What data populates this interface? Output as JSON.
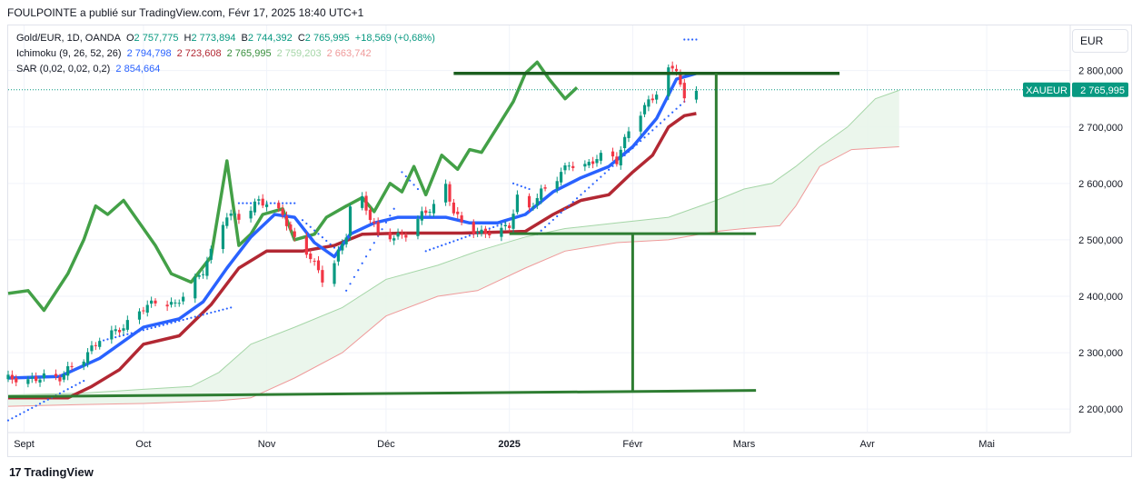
{
  "header": {
    "publisher_line": "FOULPOINTE a publié sur TradingView.com, Févr 17, 2025 18:40 UTC+1"
  },
  "legend": {
    "symbol": "Gold/EUR, 1D, OANDA",
    "ohlc": {
      "o_label": "O",
      "o": "2 757,775",
      "h_label": "H",
      "h": "2 773,894",
      "l_label": "B",
      "l": "2 744,392",
      "c_label": "C",
      "c": "2 765,995",
      "change": "+18,569 (+0,68%)"
    },
    "ichimoku": {
      "label": "Ichimoku (9, 26, 52, 26)",
      "v1": "2 794,798",
      "v2": "2 723,608",
      "v3": "2 765,995",
      "v4": "2 759,203",
      "v5": "2 663,742"
    },
    "sar": {
      "label": "SAR (0,02, 0,02, 0,2)",
      "v1": "2 854,664"
    }
  },
  "currency_button": "EUR",
  "footer": {
    "brand": "TradingView",
    "logo_glyph": "17"
  },
  "colors": {
    "up": "#089981",
    "down": "#f23645",
    "tenkan": "#2962ff",
    "kijun": "#b22833",
    "chikou": "#43a047",
    "spanA": "#a5d6a7",
    "spanB": "#ef9a9a",
    "cloud": "#e8f5e9",
    "sar": "#2962ff",
    "drawing": "#2e7d32",
    "drawing_dark": "#1b5e20"
  },
  "chart_data": {
    "type": "candlestick",
    "instrument": "XAUEUR",
    "last_price": 2765.995,
    "last_price_label": "2 765,995",
    "y_axis": {
      "ylim": [
        2160,
        2880
      ],
      "ticks": [
        2200,
        2300,
        2400,
        2500,
        2600,
        2700,
        2800
      ],
      "tick_labels": [
        "2 200,000",
        "2 300,000",
        "2 400,000",
        "2 500,000",
        "2 600,000",
        "2 700,000",
        "2 800,000"
      ]
    },
    "x_axis": {
      "range": [
        "2024-08-28",
        "2025-05-22"
      ],
      "ticks": [
        {
          "date": "2024-09-01",
          "label": "Sept",
          "bold": false
        },
        {
          "date": "2024-10-01",
          "label": "Oct",
          "bold": false
        },
        {
          "date": "2024-11-01",
          "label": "Nov",
          "bold": false
        },
        {
          "date": "2024-12-01",
          "label": "Déc",
          "bold": false
        },
        {
          "date": "2025-01-01",
          "label": "2025",
          "bold": true
        },
        {
          "date": "2025-02-01",
          "label": "Févr",
          "bold": false
        },
        {
          "date": "2025-03-01",
          "label": "Mars",
          "bold": false
        },
        {
          "date": "2025-04-01",
          "label": "Avr",
          "bold": false
        },
        {
          "date": "2025-05-01",
          "label": "Mai",
          "bold": false
        }
      ]
    },
    "price_path": [
      [
        "2024-08-28",
        2255
      ],
      [
        "2024-09-02",
        2250
      ],
      [
        "2024-09-06",
        2258
      ],
      [
        "2024-09-10",
        2255
      ],
      [
        "2024-09-12",
        2270
      ],
      [
        "2024-09-16",
        2290
      ],
      [
        "2024-09-20",
        2325
      ],
      [
        "2024-09-26",
        2345
      ],
      [
        "2024-10-01",
        2380
      ],
      [
        "2024-10-04",
        2390
      ],
      [
        "2024-10-09",
        2385
      ],
      [
        "2024-10-12",
        2410
      ],
      [
        "2024-10-16",
        2445
      ],
      [
        "2024-10-19",
        2495
      ],
      [
        "2024-10-22",
        2545
      ],
      [
        "2024-10-25",
        2540
      ],
      [
        "2024-10-28",
        2555
      ],
      [
        "2024-10-30",
        2570
      ],
      [
        "2024-11-02",
        2560
      ],
      [
        "2024-11-05",
        2545
      ],
      [
        "2024-11-08",
        2500
      ],
      [
        "2024-11-12",
        2470
      ],
      [
        "2024-11-15",
        2430
      ],
      [
        "2024-11-18",
        2460
      ],
      [
        "2024-11-21",
        2510
      ],
      [
        "2024-11-23",
        2605
      ],
      [
        "2024-11-26",
        2555
      ],
      [
        "2024-11-29",
        2510
      ],
      [
        "2024-12-03",
        2505
      ],
      [
        "2024-12-06",
        2510
      ],
      [
        "2024-12-10",
        2545
      ],
      [
        "2024-12-13",
        2560
      ],
      [
        "2024-12-16",
        2595
      ],
      [
        "2024-12-18",
        2550
      ],
      [
        "2024-12-21",
        2520
      ],
      [
        "2024-12-25",
        2512
      ],
      [
        "2024-12-29",
        2515
      ],
      [
        "2025-01-01",
        2525
      ],
      [
        "2025-01-03",
        2575
      ],
      [
        "2025-01-06",
        2555
      ],
      [
        "2025-01-09",
        2585
      ],
      [
        "2025-01-13",
        2610
      ],
      [
        "2025-01-16",
        2635
      ],
      [
        "2025-01-19",
        2625
      ],
      [
        "2025-01-23",
        2645
      ],
      [
        "2025-01-26",
        2655
      ],
      [
        "2025-01-28",
        2640
      ],
      [
        "2025-01-31",
        2695
      ],
      [
        "2025-02-03",
        2725
      ],
      [
        "2025-02-05",
        2745
      ],
      [
        "2025-02-07",
        2760
      ],
      [
        "2025-02-10",
        2800
      ],
      [
        "2025-02-12",
        2805
      ],
      [
        "2025-02-14",
        2745
      ],
      [
        "2025-02-17",
        2766
      ]
    ],
    "tenkan_path": [
      [
        "2024-08-28",
        2255
      ],
      [
        "2024-09-10",
        2258
      ],
      [
        "2024-09-20",
        2290
      ],
      [
        "2024-10-01",
        2345
      ],
      [
        "2024-10-10",
        2360
      ],
      [
        "2024-10-16",
        2390
      ],
      [
        "2024-10-22",
        2450
      ],
      [
        "2024-10-28",
        2505
      ],
      [
        "2024-11-03",
        2545
      ],
      [
        "2024-11-08",
        2540
      ],
      [
        "2024-11-13",
        2495
      ],
      [
        "2024-11-18",
        2470
      ],
      [
        "2024-11-22",
        2510
      ],
      [
        "2024-11-28",
        2530
      ],
      [
        "2024-12-04",
        2540
      ],
      [
        "2024-12-10",
        2540
      ],
      [
        "2024-12-16",
        2540
      ],
      [
        "2024-12-22",
        2530
      ],
      [
        "2024-12-29",
        2530
      ],
      [
        "2025-01-05",
        2545
      ],
      [
        "2025-01-12",
        2585
      ],
      [
        "2025-01-19",
        2610
      ],
      [
        "2025-01-26",
        2630
      ],
      [
        "2025-02-01",
        2665
      ],
      [
        "2025-02-07",
        2715
      ],
      [
        "2025-02-12",
        2785
      ],
      [
        "2025-02-17",
        2795
      ]
    ],
    "kijun_path": [
      [
        "2024-08-28",
        2220
      ],
      [
        "2024-09-12",
        2220
      ],
      [
        "2024-09-18",
        2240
      ],
      [
        "2024-09-25",
        2270
      ],
      [
        "2024-10-01",
        2315
      ],
      [
        "2024-10-10",
        2330
      ],
      [
        "2024-10-18",
        2385
      ],
      [
        "2024-10-25",
        2450
      ],
      [
        "2024-11-01",
        2480
      ],
      [
        "2024-11-10",
        2480
      ],
      [
        "2024-11-18",
        2490
      ],
      [
        "2024-11-25",
        2510
      ],
      [
        "2024-12-05",
        2512
      ],
      [
        "2024-12-20",
        2512
      ],
      [
        "2025-01-05",
        2515
      ],
      [
        "2025-01-12",
        2545
      ],
      [
        "2025-01-19",
        2570
      ],
      [
        "2025-01-26",
        2580
      ],
      [
        "2025-02-01",
        2620
      ],
      [
        "2025-02-06",
        2650
      ],
      [
        "2025-02-10",
        2700
      ],
      [
        "2025-02-14",
        2720
      ],
      [
        "2025-02-17",
        2724
      ]
    ],
    "chikou_path": [
      [
        "2024-08-28",
        2405
      ],
      [
        "2024-09-02",
        2410
      ],
      [
        "2024-09-06",
        2375
      ],
      [
        "2024-09-12",
        2440
      ],
      [
        "2024-09-16",
        2500
      ],
      [
        "2024-09-19",
        2560
      ],
      [
        "2024-09-22",
        2545
      ],
      [
        "2024-09-26",
        2570
      ],
      [
        "2024-10-01",
        2520
      ],
      [
        "2024-10-04",
        2490
      ],
      [
        "2024-10-08",
        2440
      ],
      [
        "2024-10-13",
        2425
      ],
      [
        "2024-10-18",
        2470
      ],
      [
        "2024-10-22",
        2640
      ],
      [
        "2024-10-25",
        2490
      ],
      [
        "2024-10-28",
        2510
      ],
      [
        "2024-10-31",
        2545
      ],
      [
        "2024-11-05",
        2555
      ],
      [
        "2024-11-08",
        2500
      ],
      [
        "2024-11-13",
        2510
      ],
      [
        "2024-11-16",
        2540
      ],
      [
        "2024-11-21",
        2560
      ],
      [
        "2024-11-25",
        2575
      ],
      [
        "2024-11-28",
        2550
      ],
      [
        "2024-12-02",
        2600
      ],
      [
        "2024-12-05",
        2585
      ],
      [
        "2024-12-08",
        2630
      ],
      [
        "2024-12-11",
        2580
      ],
      [
        "2024-12-15",
        2650
      ],
      [
        "2024-12-19",
        2625
      ],
      [
        "2024-12-22",
        2660
      ],
      [
        "2024-12-25",
        2655
      ],
      [
        "2024-12-29",
        2700
      ],
      [
        "2025-01-02",
        2745
      ],
      [
        "2025-01-05",
        2795
      ],
      [
        "2025-01-08",
        2815
      ],
      [
        "2025-01-11",
        2785
      ],
      [
        "2025-01-15",
        2750
      ],
      [
        "2025-01-18",
        2770
      ]
    ],
    "span_a_path": [
      [
        "2024-08-28",
        2225
      ],
      [
        "2024-09-15",
        2228
      ],
      [
        "2024-10-01",
        2235
      ],
      [
        "2024-10-13",
        2240
      ],
      [
        "2024-10-20",
        2265
      ],
      [
        "2024-10-28",
        2315
      ],
      [
        "2024-11-08",
        2345
      ],
      [
        "2024-11-20",
        2380
      ],
      [
        "2024-12-01",
        2430
      ],
      [
        "2024-12-14",
        2455
      ],
      [
        "2024-12-24",
        2480
      ],
      [
        "2025-01-05",
        2505
      ],
      [
        "2025-01-15",
        2520
      ],
      [
        "2025-01-28",
        2530
      ],
      [
        "2025-02-10",
        2540
      ],
      [
        "2025-02-22",
        2570
      ],
      [
        "2025-03-01",
        2590
      ],
      [
        "2025-03-08",
        2600
      ],
      [
        "2025-03-14",
        2630
      ],
      [
        "2025-03-20",
        2665
      ],
      [
        "2025-03-27",
        2700
      ],
      [
        "2025-04-03",
        2750
      ],
      [
        "2025-04-09",
        2765
      ]
    ],
    "span_b_path": [
      [
        "2024-08-28",
        2205
      ],
      [
        "2024-09-15",
        2208
      ],
      [
        "2024-10-01",
        2210
      ],
      [
        "2024-10-20",
        2215
      ],
      [
        "2024-10-28",
        2220
      ],
      [
        "2024-11-08",
        2255
      ],
      [
        "2024-11-20",
        2300
      ],
      [
        "2024-12-01",
        2365
      ],
      [
        "2024-12-14",
        2400
      ],
      [
        "2024-12-24",
        2410
      ],
      [
        "2025-01-05",
        2450
      ],
      [
        "2025-01-15",
        2480
      ],
      [
        "2025-01-28",
        2495
      ],
      [
        "2025-02-10",
        2500
      ],
      [
        "2025-02-22",
        2515
      ],
      [
        "2025-03-01",
        2520
      ],
      [
        "2025-03-10",
        2525
      ],
      [
        "2025-03-14",
        2560
      ],
      [
        "2025-03-20",
        2630
      ],
      [
        "2025-03-28",
        2660
      ],
      [
        "2025-04-09",
        2665
      ]
    ],
    "sar_segments": [
      {
        "from": [
          "2024-08-28",
          2180
        ],
        "to": [
          "2024-09-16",
          2250
        ]
      },
      {
        "from": [
          "2024-09-20",
          2320
        ],
        "to": [
          "2024-10-23",
          2380
        ]
      },
      {
        "from": [
          "2024-10-25",
          2565
        ],
        "to": [
          "2024-11-08",
          2565
        ]
      },
      {
        "from": [
          "2024-11-10",
          2535
        ],
        "to": [
          "2024-11-19",
          2480
        ]
      },
      {
        "from": [
          "2024-11-21",
          2410
        ],
        "to": [
          "2024-12-03",
          2555
        ]
      },
      {
        "from": [
          "2024-12-05",
          2620
        ],
        "to": [
          "2024-12-09",
          2590
        ]
      },
      {
        "from": [
          "2024-12-11",
          2480
        ],
        "to": [
          "2024-12-31",
          2530
        ]
      },
      {
        "from": [
          "2025-01-02",
          2600
        ],
        "to": [
          "2025-01-06",
          2590
        ]
      },
      {
        "from": [
          "2025-01-08",
          2510
        ],
        "to": [
          "2025-02-14",
          2745
        ]
      },
      {
        "from": [
          "2025-02-14",
          2855
        ],
        "to": [
          "2025-02-17",
          2855
        ]
      }
    ],
    "drawings": {
      "upper_horizontal": {
        "from": [
          "2024-12-18",
          2795
        ],
        "to": [
          "2025-03-25",
          2795
        ]
      },
      "middle_horizontal": {
        "from": [
          "2025-01-01",
          2511
        ],
        "to": [
          "2025-03-04",
          2511
        ]
      },
      "lower_trend": {
        "from": [
          "2024-08-28",
          2222
        ],
        "to": [
          "2025-03-04",
          2233
        ]
      },
      "measure_right": {
        "from": [
          "2025-02-22",
          2795
        ],
        "to": [
          "2025-02-22",
          2511
        ]
      },
      "measure_left": {
        "from": [
          "2025-02-01",
          2511
        ],
        "to": [
          "2025-02-01",
          2233
        ]
      }
    }
  }
}
